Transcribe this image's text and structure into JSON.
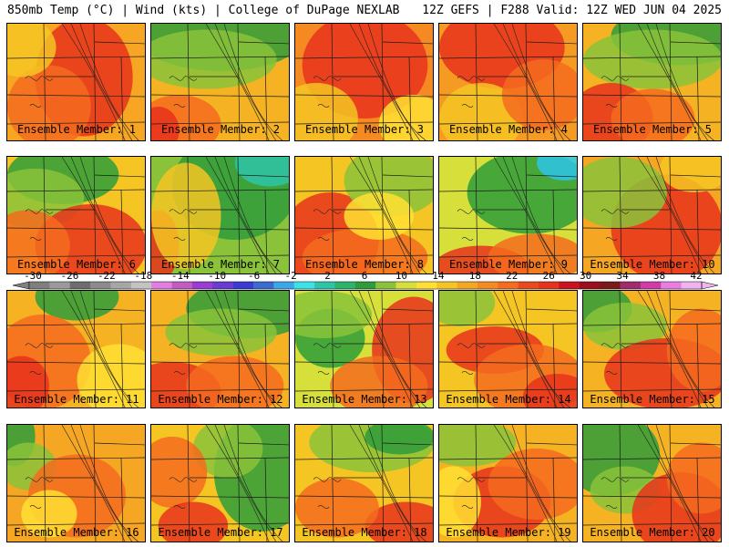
{
  "header": {
    "left": "850mb Temp (°C) | Wind (kts) | College of DuPage NEXLAB",
    "right": "12Z GEFS | F288 Valid: 12Z WED JUN 04 2025"
  },
  "panels": [
    {
      "label": "Ensemble Member: 1",
      "base": "#f7a623",
      "blobs": [
        [
          "#e8331c",
          0.55,
          0.45,
          0.35,
          0.5
        ],
        [
          "#f56b1f",
          0.3,
          0.7,
          0.3,
          0.35
        ],
        [
          "#f5c523",
          0.1,
          0.2,
          0.25,
          0.25
        ]
      ]
    },
    {
      "label": "Ensemble Member: 2",
      "base": "#f5b323",
      "blobs": [
        [
          "#2e9c3a",
          0.5,
          0.1,
          0.6,
          0.3
        ],
        [
          "#8ac33a",
          0.4,
          0.3,
          0.5,
          0.25
        ],
        [
          "#f56b1f",
          0.2,
          0.85,
          0.3,
          0.25
        ],
        [
          "#e8331c",
          0.05,
          0.9,
          0.15,
          0.2
        ]
      ]
    },
    {
      "label": "Ensemble Member: 3",
      "base": "#f58a23",
      "blobs": [
        [
          "#e8331c",
          0.5,
          0.35,
          0.45,
          0.45
        ],
        [
          "#f5c523",
          0.15,
          0.8,
          0.3,
          0.3
        ],
        [
          "#ffe033",
          0.85,
          0.85,
          0.25,
          0.25
        ]
      ]
    },
    {
      "label": "Ensemble Member: 4",
      "base": "#f59a23",
      "blobs": [
        [
          "#e8331c",
          0.45,
          0.2,
          0.45,
          0.35
        ],
        [
          "#f5c523",
          0.3,
          0.8,
          0.3,
          0.3
        ],
        [
          "#f56b1f",
          0.75,
          0.6,
          0.3,
          0.3
        ]
      ]
    },
    {
      "label": "Ensemble Member: 5",
      "base": "#f5b323",
      "blobs": [
        [
          "#2e9c3a",
          0.7,
          0.1,
          0.5,
          0.25
        ],
        [
          "#8ac33a",
          0.5,
          0.3,
          0.5,
          0.25
        ],
        [
          "#e8331c",
          0.2,
          0.8,
          0.3,
          0.3
        ],
        [
          "#f56b1f",
          0.5,
          0.8,
          0.3,
          0.25
        ]
      ]
    },
    {
      "label": "Ensemble Member: 6",
      "base": "#f5c523",
      "blobs": [
        [
          "#2e9c3a",
          0.4,
          0.15,
          0.4,
          0.25
        ],
        [
          "#8ac33a",
          0.2,
          0.35,
          0.35,
          0.25
        ],
        [
          "#e8331c",
          0.6,
          0.75,
          0.4,
          0.35
        ],
        [
          "#f56b1f",
          0.15,
          0.75,
          0.3,
          0.3
        ]
      ]
    },
    {
      "label": "Ensemble Member: 7",
      "base": "#8ac33a",
      "blobs": [
        [
          "#2e9c3a",
          0.6,
          0.25,
          0.45,
          0.45
        ],
        [
          "#2ec4a8",
          0.85,
          0.05,
          0.25,
          0.2
        ],
        [
          "#e8331c",
          0.05,
          0.75,
          0.15,
          0.3
        ],
        [
          "#f5c523",
          0.25,
          0.5,
          0.25,
          0.45
        ]
      ]
    },
    {
      "label": "Ensemble Member: 8",
      "base": "#f5c523",
      "blobs": [
        [
          "#e8331c",
          0.25,
          0.7,
          0.35,
          0.4
        ],
        [
          "#f56b1f",
          0.5,
          0.85,
          0.45,
          0.25
        ],
        [
          "#8ac33a",
          0.7,
          0.2,
          0.35,
          0.3
        ],
        [
          "#ffe033",
          0.6,
          0.5,
          0.25,
          0.2
        ]
      ]
    },
    {
      "label": "Ensemble Member: 9",
      "base": "#d7e03a",
      "blobs": [
        [
          "#2e9c3a",
          0.65,
          0.3,
          0.45,
          0.35
        ],
        [
          "#2ec4e8",
          0.9,
          0.05,
          0.2,
          0.15
        ],
        [
          "#e8331c",
          0.3,
          0.95,
          0.35,
          0.2
        ],
        [
          "#f56b1f",
          0.7,
          0.85,
          0.35,
          0.2
        ]
      ]
    },
    {
      "label": "Ensemble Member: 10",
      "base": "#f5a623",
      "blobs": [
        [
          "#e8331c",
          0.6,
          0.6,
          0.4,
          0.45
        ],
        [
          "#8ac33a",
          0.25,
          0.3,
          0.35,
          0.3
        ],
        [
          "#f5c523",
          0.8,
          0.1,
          0.25,
          0.2
        ]
      ]
    },
    {
      "label": "Ensemble Member: 11",
      "base": "#f5b323",
      "blobs": [
        [
          "#2e9c3a",
          0.5,
          0.05,
          0.3,
          0.2
        ],
        [
          "#f56b1f",
          0.25,
          0.6,
          0.35,
          0.4
        ],
        [
          "#e8331c",
          0.1,
          0.8,
          0.2,
          0.25
        ],
        [
          "#ffe033",
          0.8,
          0.75,
          0.3,
          0.3
        ]
      ]
    },
    {
      "label": "Ensemble Member: 12",
      "base": "#f5b323",
      "blobs": [
        [
          "#2e9c3a",
          0.7,
          0.15,
          0.45,
          0.25
        ],
        [
          "#8ac33a",
          0.5,
          0.35,
          0.4,
          0.2
        ],
        [
          "#e8331c",
          0.15,
          0.85,
          0.35,
          0.25
        ],
        [
          "#f56b1f",
          0.6,
          0.8,
          0.35,
          0.25
        ]
      ]
    },
    {
      "label": "Ensemble Member: 13",
      "base": "#d7e03a",
      "blobs": [
        [
          "#2e9c3a",
          0.25,
          0.4,
          0.25,
          0.25
        ],
        [
          "#8ac33a",
          0.2,
          0.2,
          0.35,
          0.2
        ],
        [
          "#e8331c",
          0.85,
          0.5,
          0.3,
          0.45
        ],
        [
          "#f56b1f",
          0.6,
          0.8,
          0.35,
          0.25
        ]
      ]
    },
    {
      "label": "Ensemble Member: 14",
      "base": "#f5c523",
      "blobs": [
        [
          "#e8331c",
          0.4,
          0.5,
          0.35,
          0.2
        ],
        [
          "#f56b1f",
          0.65,
          0.75,
          0.4,
          0.3
        ],
        [
          "#8ac33a",
          0.15,
          0.1,
          0.25,
          0.2
        ],
        [
          "#e8331c",
          0.85,
          0.9,
          0.25,
          0.2
        ]
      ]
    },
    {
      "label": "Ensemble Member: 15",
      "base": "#f5b323",
      "blobs": [
        [
          "#2e9c3a",
          0.1,
          0.15,
          0.25,
          0.2
        ],
        [
          "#8ac33a",
          0.3,
          0.3,
          0.3,
          0.2
        ],
        [
          "#e8331c",
          0.6,
          0.7,
          0.45,
          0.3
        ],
        [
          "#f56b1f",
          0.85,
          0.5,
          0.25,
          0.35
        ]
      ]
    },
    {
      "label": "Ensemble Member: 16",
      "base": "#f5a623",
      "blobs": [
        [
          "#2e9c3a",
          0.05,
          0.1,
          0.15,
          0.25
        ],
        [
          "#8ac33a",
          0.15,
          0.35,
          0.2,
          0.2
        ],
        [
          "#f56b1f",
          0.5,
          0.6,
          0.35,
          0.35
        ],
        [
          "#ffe033",
          0.3,
          0.75,
          0.2,
          0.2
        ]
      ]
    },
    {
      "label": "Ensemble Member: 17",
      "base": "#f5c523",
      "blobs": [
        [
          "#2e9c3a",
          0.8,
          0.4,
          0.35,
          0.5
        ],
        [
          "#8ac33a",
          0.55,
          0.2,
          0.25,
          0.25
        ],
        [
          "#f56b1f",
          0.15,
          0.4,
          0.25,
          0.3
        ],
        [
          "#e8331c",
          0.3,
          0.85,
          0.25,
          0.2
        ]
      ]
    },
    {
      "label": "Ensemble Member: 18",
      "base": "#f5c523",
      "blobs": [
        [
          "#8ac33a",
          0.55,
          0.15,
          0.45,
          0.25
        ],
        [
          "#2e9c3a",
          0.75,
          0.1,
          0.25,
          0.15
        ],
        [
          "#e8331c",
          0.8,
          0.85,
          0.3,
          0.2
        ],
        [
          "#f56b1f",
          0.3,
          0.7,
          0.3,
          0.25
        ]
      ]
    },
    {
      "label": "Ensemble Member: 19",
      "base": "#f5b323",
      "blobs": [
        [
          "#8ac33a",
          0.2,
          0.15,
          0.35,
          0.2
        ],
        [
          "#e8331c",
          0.45,
          0.65,
          0.35,
          0.3
        ],
        [
          "#f56b1f",
          0.7,
          0.5,
          0.35,
          0.3
        ],
        [
          "#ffe033",
          0.1,
          0.65,
          0.2,
          0.3
        ]
      ]
    },
    {
      "label": "Ensemble Member: 20",
      "base": "#f5b323",
      "blobs": [
        [
          "#2e9c3a",
          0.2,
          0.25,
          0.35,
          0.35
        ],
        [
          "#8ac33a",
          0.3,
          0.55,
          0.25,
          0.2
        ],
        [
          "#e8331c",
          0.7,
          0.75,
          0.35,
          0.35
        ],
        [
          "#f56b1f",
          0.85,
          0.45,
          0.25,
          0.3
        ]
      ]
    }
  ],
  "colorbar": {
    "ticks": [
      "-30",
      "-26",
      "-22",
      "-18",
      "-14",
      "-10",
      "-6",
      "-2",
      "2",
      "6",
      "10",
      "14",
      "18",
      "22",
      "26",
      "30",
      "34",
      "38",
      "42"
    ],
    "colors": [
      "#7f7f7f",
      "#9a9a9a",
      "#6d6d6d",
      "#8b8b8b",
      "#a6a6a6",
      "#c3c3c3",
      "#e27ee2",
      "#c35bc3",
      "#9b3bd1",
      "#6a3bd1",
      "#3b3bd1",
      "#3b6bd1",
      "#3ba7e8",
      "#3be2e8",
      "#2ec4a8",
      "#2eb36b",
      "#2e9c3a",
      "#8ac33a",
      "#d7e03a",
      "#ffe033",
      "#f5c523",
      "#f5a623",
      "#f58a23",
      "#f56b1f",
      "#e84a1c",
      "#e8331c",
      "#c8141c",
      "#9b0f1c",
      "#7a1a1a",
      "#a02a6b",
      "#d13ba8",
      "#e87ee2",
      "#f0b3f0"
    ]
  }
}
